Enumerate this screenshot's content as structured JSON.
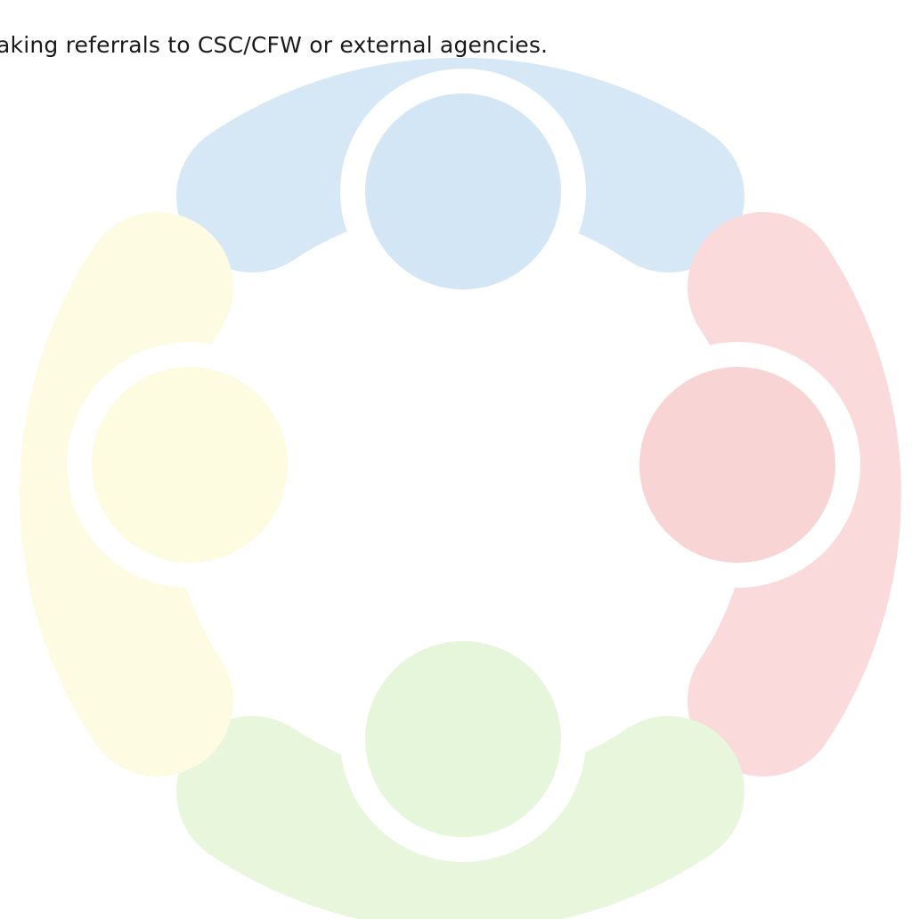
{
  "document": {
    "text_line": "aking referrals to CSC/CFW or external agencies."
  }
}
